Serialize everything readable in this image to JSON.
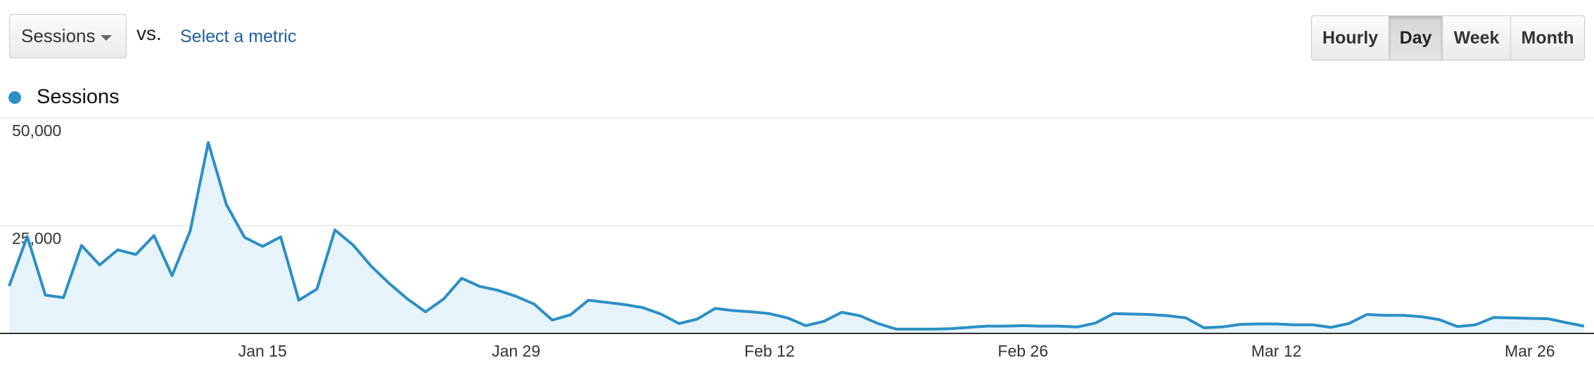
{
  "controls": {
    "metric_select_value": "Sessions",
    "vs_label": "vs.",
    "select_metric_link": "Select a metric",
    "period_buttons": [
      {
        "label": "Hourly",
        "active": false
      },
      {
        "label": "Day",
        "active": true
      },
      {
        "label": "Week",
        "active": false
      },
      {
        "label": "Month",
        "active": false
      }
    ]
  },
  "colors": {
    "series": "#2b8fc6",
    "area": "#e6f3fa",
    "grid": "#e6e6e6",
    "baseline": "#333333"
  },
  "chart_data": {
    "type": "area",
    "series": [
      {
        "name": "Sessions",
        "values": [
          11000,
          22500,
          8900,
          8300,
          20400,
          15900,
          19400,
          18300,
          22700,
          13400,
          23800,
          44300,
          29900,
          22300,
          20200,
          22400,
          7700,
          10300,
          24000,
          20500,
          15600,
          11600,
          8000,
          5000,
          8000,
          12800,
          10900,
          10000,
          8600,
          6800,
          3100,
          4300,
          7700,
          7200,
          6700,
          6000,
          4500,
          2300,
          3300,
          5800,
          5300,
          5000,
          4600,
          3600,
          1800,
          2800,
          4900,
          4100,
          2300,
          1000,
          1000,
          1000,
          1100,
          1400,
          1700,
          1700,
          1800,
          1700,
          1700,
          1500,
          2400,
          4600,
          4500,
          4400,
          4100,
          3600,
          1300,
          1500,
          2100,
          2200,
          2200,
          2000,
          2000,
          1400,
          2300,
          4400,
          4200,
          4200,
          3900,
          3200,
          1600,
          2000,
          3700,
          3600,
          3500,
          3400,
          2500,
          1700
        ]
      }
    ],
    "x_ticks": [
      {
        "label": "Jan 15",
        "index": 14
      },
      {
        "label": "Jan 29",
        "index": 28
      },
      {
        "label": "Feb 12",
        "index": 42
      },
      {
        "label": "Feb 26",
        "index": 56
      },
      {
        "label": "Mar 12",
        "index": 70
      },
      {
        "label": "Mar 26",
        "index": 84
      }
    ],
    "y_ticks": [
      {
        "label": "50,000",
        "value": 50000
      },
      {
        "label": "25,000",
        "value": 25000
      }
    ],
    "ylim": [
      0,
      50000
    ],
    "grid": true,
    "legend": "top-left"
  }
}
